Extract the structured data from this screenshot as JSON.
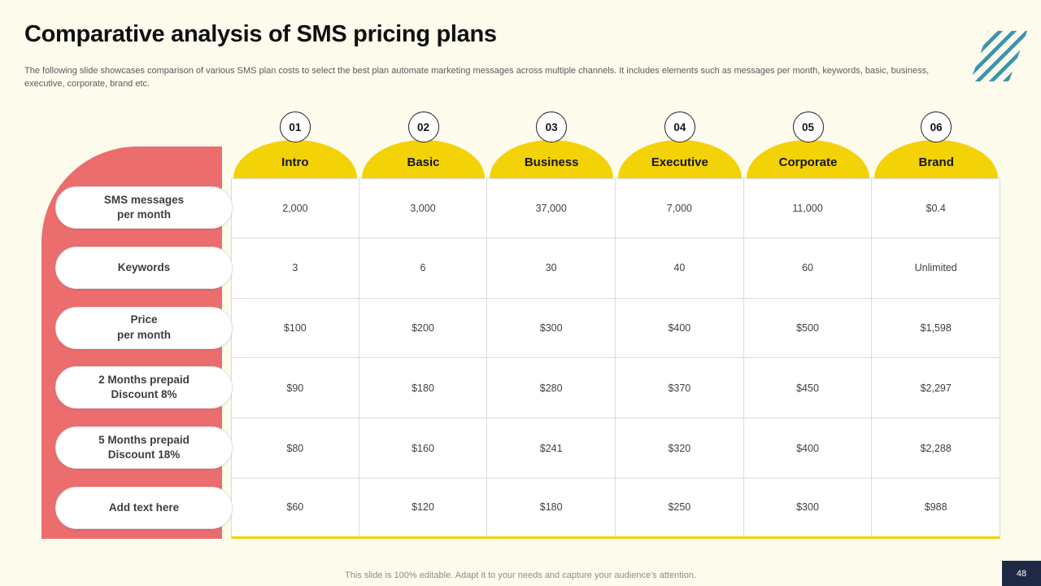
{
  "slide": {
    "title": "Comparative analysis of SMS pricing plans",
    "description": "The following slide showcases comparison of various SMS plan costs to select the best plan automate marketing messages across multiple channels. It includes elements such as messages per month, keywords, basic, business, executive, corporate, brand etc.",
    "footer_note": "This slide is 100% editable.  Adapt it to your needs and capture your audience's attention.",
    "page_number": "48"
  },
  "table": {
    "row_labels": [
      "SMS messages\nper month",
      "Keywords",
      "Price\nper month",
      "2 Months prepaid\nDiscount 8%",
      "5 Months prepaid\nDiscount 18%",
      "Add text here"
    ],
    "columns": [
      {
        "number": "01",
        "name": "Intro",
        "values": [
          "2,000",
          "3",
          "$100",
          "$90",
          "$80",
          "$60"
        ]
      },
      {
        "number": "02",
        "name": "Basic",
        "values": [
          "3,000",
          "6",
          "$200",
          "$180",
          "$160",
          "$120"
        ]
      },
      {
        "number": "03",
        "name": "Business",
        "values": [
          "37,000",
          "30",
          "$300",
          "$280",
          "$241",
          "$180"
        ]
      },
      {
        "number": "04",
        "name": "Executive",
        "values": [
          "7,000",
          "40",
          "$400",
          "$370",
          "$320",
          "$250"
        ]
      },
      {
        "number": "05",
        "name": "Corporate",
        "values": [
          "11,000",
          "60",
          "$500",
          "$450",
          "$400",
          "$300"
        ]
      },
      {
        "number": "06",
        "name": "Brand",
        "values": [
          "$0.4",
          "Unlimited",
          "$1,598",
          "$2,297",
          "$2,288",
          "$988"
        ]
      }
    ]
  },
  "colors": {
    "background": "#FCFBEC",
    "panel_red": "#EB6D6D",
    "header_yellow": "#F3D207",
    "navy": "#1E2A45",
    "stripe_teal": "#3E93A9"
  }
}
